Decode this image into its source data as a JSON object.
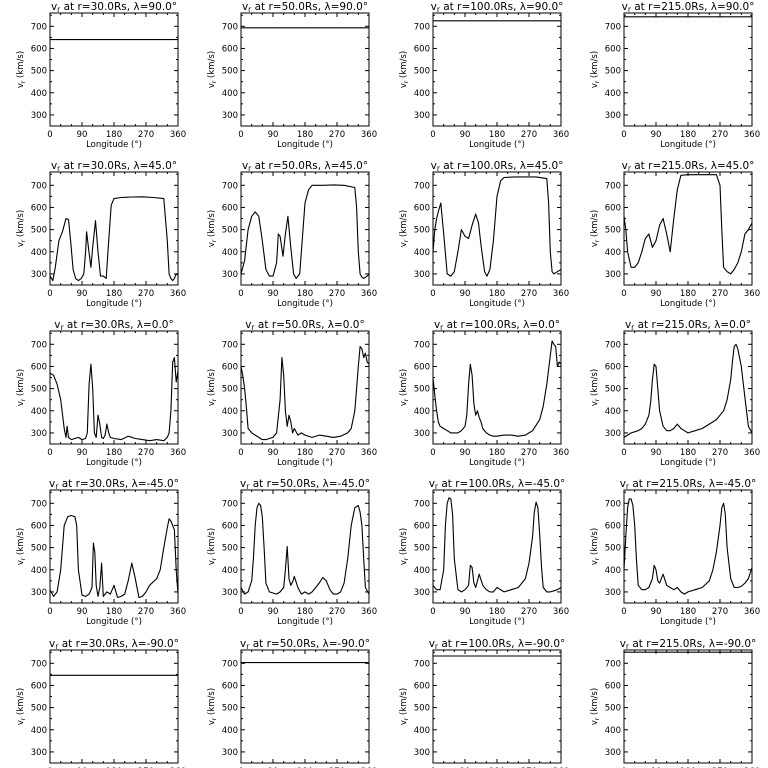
{
  "shared": {
    "xlabel": "Longitude (°)",
    "ylabel": "vr (km/s)",
    "ylabel_main": "v",
    "ylabel_sub": "r",
    "ylabel_unit": " (km/s)",
    "xticks": [
      "0",
      "90",
      "180",
      "270",
      "360"
    ],
    "yticks": [
      "300",
      "400",
      "500",
      "600",
      "700"
    ],
    "xlim": [
      0,
      360
    ],
    "ylim": [
      250,
      760
    ],
    "line_color": "#000000"
  },
  "chart_data": [
    {
      "type": "line",
      "title": "vr at r=30.0Rs, λ=90.0°",
      "title_main": "v",
      "title_sub": "r",
      "title_rest": " at r=30.0Rs, λ=90.0°",
      "x": [
        0,
        360
      ],
      "y": [
        640,
        640
      ]
    },
    {
      "type": "line",
      "title": "vr at r=50.0Rs, λ=90.0°",
      "title_main": "v",
      "title_sub": "r",
      "title_rest": " at r=50.0Rs, λ=90.0°",
      "x": [
        0,
        360
      ],
      "y": [
        693,
        693
      ]
    },
    {
      "type": "line",
      "title": "vr at r=100.0Rs, λ=90.0°",
      "title_main": "v",
      "title_sub": "r",
      "title_rest": " at r=100.0Rs, λ=90.0°",
      "x": [
        0,
        360
      ],
      "y": [
        725,
        725
      ]
    },
    {
      "type": "line",
      "title": "vr at r=215.0Rs, λ=90.0°",
      "title_main": "v",
      "title_sub": "r",
      "title_rest": " at r=215.0Rs, λ=90.0°",
      "x": [
        0,
        360
      ],
      "y": [
        743,
        743
      ]
    },
    {
      "type": "line",
      "title": "vr at r=30.0Rs, λ=45.0°",
      "title_main": "v",
      "title_sub": "r",
      "title_rest": " at r=30.0Rs, λ=45.0°",
      "x": [
        0,
        8,
        15,
        25,
        35,
        45,
        52,
        58,
        65,
        72,
        80,
        88,
        95,
        100,
        103,
        108,
        115,
        120,
        128,
        135,
        142,
        150,
        158,
        165,
        172,
        180,
        200,
        230,
        260,
        290,
        320,
        330,
        335,
        340,
        345,
        350,
        355,
        360
      ],
      "y": [
        290,
        270,
        330,
        450,
        490,
        550,
        545,
        450,
        320,
        280,
        270,
        280,
        300,
        400,
        490,
        420,
        330,
        420,
        540,
        400,
        290,
        290,
        280,
        450,
        610,
        640,
        645,
        647,
        648,
        645,
        640,
        450,
        300,
        280,
        270,
        280,
        300,
        295
      ]
    },
    {
      "type": "line",
      "title": "vr at r=50.0Rs, λ=45.0°",
      "title_main": "v",
      "title_sub": "r",
      "title_rest": " at r=50.0Rs, λ=45.0°",
      "x": [
        0,
        10,
        20,
        30,
        40,
        50,
        60,
        70,
        80,
        90,
        100,
        105,
        110,
        118,
        125,
        132,
        140,
        148,
        155,
        165,
        172,
        180,
        190,
        200,
        230,
        260,
        290,
        320,
        325,
        330,
        335,
        340,
        345,
        350,
        355,
        360
      ],
      "y": [
        300,
        360,
        500,
        560,
        580,
        560,
        450,
        320,
        290,
        290,
        350,
        480,
        470,
        380,
        480,
        560,
        420,
        300,
        280,
        300,
        450,
        620,
        680,
        700,
        700,
        702,
        700,
        690,
        600,
        400,
        300,
        285,
        280,
        285,
        290,
        300
      ]
    },
    {
      "type": "line",
      "title": "vr at r=100.0Rs, λ=45.0°",
      "title_main": "v",
      "title_sub": "r",
      "title_rest": " at r=100.0Rs, λ=45.0°",
      "x": [
        0,
        5,
        10,
        15,
        22,
        30,
        40,
        50,
        60,
        70,
        80,
        90,
        100,
        110,
        120,
        128,
        135,
        145,
        152,
        160,
        170,
        180,
        190,
        200,
        230,
        260,
        290,
        320,
        325,
        330,
        335,
        340,
        350,
        360
      ],
      "y": [
        400,
        500,
        550,
        580,
        620,
        480,
        300,
        290,
        310,
        400,
        500,
        470,
        460,
        520,
        570,
        530,
        430,
        310,
        290,
        320,
        450,
        650,
        720,
        735,
        738,
        738,
        738,
        730,
        620,
        400,
        310,
        300,
        310,
        320
      ]
    },
    {
      "type": "line",
      "title": "vr at r=215.0Rs, λ=45.0°",
      "title_main": "v",
      "title_sub": "r",
      "title_rest": " at r=215.0Rs, λ=45.0°",
      "x": [
        0,
        5,
        10,
        20,
        30,
        40,
        50,
        60,
        70,
        80,
        90,
        100,
        110,
        120,
        130,
        140,
        150,
        160,
        180,
        200,
        230,
        260,
        270,
        275,
        280,
        290,
        300,
        310,
        320,
        330,
        340,
        350,
        360
      ],
      "y": [
        560,
        500,
        400,
        330,
        330,
        350,
        400,
        460,
        480,
        420,
        450,
        520,
        550,
        480,
        400,
        550,
        680,
        745,
        748,
        748,
        748,
        748,
        700,
        500,
        330,
        310,
        300,
        320,
        350,
        400,
        480,
        500,
        530
      ]
    },
    {
      "type": "line",
      "title": "vr at r=30.0Rs, λ=0.0°",
      "title_main": "v",
      "title_sub": "r",
      "title_rest": " at r=30.0Rs, λ=0.0°",
      "x": [
        0,
        10,
        20,
        30,
        40,
        45,
        48,
        52,
        60,
        70,
        80,
        90,
        100,
        105,
        110,
        115,
        120,
        125,
        130,
        135,
        140,
        145,
        150,
        155,
        160,
        165,
        170,
        180,
        200,
        220,
        240,
        260,
        280,
        300,
        320,
        330,
        335,
        340,
        345,
        350,
        355,
        360
      ],
      "y": [
        570,
        560,
        520,
        450,
        320,
        280,
        330,
        280,
        270,
        275,
        280,
        270,
        275,
        300,
        520,
        610,
        500,
        300,
        280,
        380,
        340,
        280,
        275,
        290,
        340,
        300,
        280,
        275,
        270,
        285,
        275,
        270,
        265,
        270,
        265,
        280,
        300,
        400,
        620,
        640,
        530,
        580
      ]
    },
    {
      "type": "line",
      "title": "vr at r=50.0Rs, λ=0.0°",
      "title_main": "v",
      "title_sub": "r",
      "title_rest": " at r=50.0Rs, λ=0.0°",
      "x": [
        0,
        5,
        10,
        15,
        20,
        30,
        40,
        50,
        60,
        70,
        80,
        90,
        100,
        110,
        115,
        120,
        125,
        130,
        135,
        140,
        145,
        150,
        160,
        170,
        180,
        200,
        220,
        240,
        260,
        280,
        300,
        310,
        320,
        325,
        330,
        335,
        340,
        345,
        350,
        355,
        360
      ],
      "y": [
        600,
        560,
        500,
        420,
        320,
        300,
        290,
        280,
        270,
        270,
        275,
        280,
        300,
        450,
        640,
        560,
        400,
        330,
        380,
        350,
        300,
        320,
        290,
        300,
        290,
        280,
        290,
        285,
        280,
        285,
        300,
        320,
        400,
        500,
        600,
        690,
        680,
        640,
        660,
        620,
        610
      ]
    },
    {
      "type": "line",
      "title": "vr at r=100.0Rs, λ=0.0°",
      "title_main": "v",
      "title_sub": "r",
      "title_rest": " at r=100.0Rs, λ=0.0°",
      "x": [
        0,
        5,
        10,
        15,
        20,
        30,
        40,
        50,
        60,
        70,
        80,
        90,
        95,
        100,
        105,
        110,
        115,
        120,
        125,
        130,
        135,
        140,
        150,
        160,
        170,
        180,
        200,
        220,
        240,
        260,
        280,
        300,
        310,
        320,
        330,
        335,
        340,
        345,
        350,
        355,
        360
      ],
      "y": [
        550,
        470,
        400,
        350,
        330,
        320,
        310,
        300,
        300,
        300,
        310,
        330,
        380,
        520,
        610,
        560,
        430,
        380,
        400,
        370,
        350,
        320,
        300,
        290,
        285,
        285,
        290,
        290,
        285,
        290,
        310,
        360,
        420,
        520,
        650,
        715,
        700,
        690,
        600,
        620,
        610
      ]
    },
    {
      "type": "line",
      "title": "vr at r=215.0Rs, λ=0.0°",
      "title_main": "v",
      "title_sub": "r",
      "title_rest": " at r=215.0Rs, λ=0.0°",
      "x": [
        0,
        10,
        20,
        30,
        40,
        50,
        60,
        70,
        75,
        80,
        85,
        90,
        95,
        100,
        110,
        120,
        130,
        140,
        150,
        160,
        170,
        180,
        200,
        220,
        240,
        260,
        280,
        290,
        300,
        305,
        310,
        315,
        320,
        330,
        340,
        350,
        360
      ],
      "y": [
        280,
        290,
        300,
        305,
        310,
        320,
        340,
        380,
        440,
        540,
        610,
        600,
        500,
        400,
        330,
        310,
        310,
        320,
        340,
        320,
        310,
        300,
        310,
        320,
        340,
        360,
        400,
        450,
        540,
        620,
        690,
        700,
        680,
        600,
        460,
        330,
        300
      ]
    },
    {
      "type": "line",
      "title": "vr at r=30.0Rs, λ=-45.0°",
      "title_main": "v",
      "title_sub": "r",
      "title_rest": " at r=30.0Rs, λ=-45.0°",
      "x": [
        0,
        10,
        20,
        30,
        40,
        50,
        60,
        70,
        75,
        80,
        90,
        100,
        110,
        118,
        122,
        126,
        130,
        135,
        140,
        145,
        150,
        160,
        170,
        180,
        190,
        200,
        210,
        220,
        230,
        240,
        250,
        260,
        270,
        280,
        300,
        310,
        320,
        330,
        335,
        340,
        345,
        350,
        355,
        360
      ],
      "y": [
        310,
        280,
        300,
        400,
        600,
        640,
        645,
        640,
        600,
        400,
        285,
        280,
        290,
        320,
        520,
        480,
        330,
        280,
        320,
        430,
        280,
        300,
        290,
        330,
        275,
        280,
        290,
        350,
        430,
        360,
        275,
        280,
        300,
        330,
        360,
        400,
        500,
        590,
        630,
        620,
        600,
        580,
        400,
        290
      ]
    },
    {
      "type": "line",
      "title": "vr at r=50.0Rs, λ=-45.0°",
      "title_main": "v",
      "title_sub": "r",
      "title_rest": " at r=50.0Rs, λ=-45.0°",
      "x": [
        0,
        10,
        20,
        30,
        35,
        40,
        45,
        50,
        55,
        60,
        65,
        70,
        80,
        90,
        100,
        110,
        120,
        125,
        130,
        135,
        140,
        145,
        150,
        160,
        170,
        180,
        190,
        200,
        210,
        220,
        230,
        240,
        250,
        260,
        270,
        280,
        290,
        300,
        310,
        320,
        330,
        335,
        340,
        345,
        350,
        360
      ],
      "y": [
        320,
        290,
        300,
        350,
        450,
        600,
        680,
        700,
        690,
        640,
        500,
        340,
        300,
        295,
        290,
        300,
        320,
        400,
        505,
        360,
        330,
        345,
        370,
        320,
        290,
        300,
        290,
        300,
        320,
        340,
        365,
        350,
        310,
        290,
        290,
        300,
        340,
        450,
        600,
        680,
        690,
        660,
        600,
        450,
        320,
        290
      ]
    },
    {
      "type": "line",
      "title": "vr at r=100.0Rs, λ=-45.0°",
      "title_main": "v",
      "title_sub": "r",
      "title_rest": " at r=100.0Rs, λ=-45.0°",
      "x": [
        0,
        10,
        20,
        30,
        35,
        40,
        45,
        50,
        55,
        60,
        70,
        80,
        90,
        100,
        105,
        110,
        115,
        120,
        130,
        140,
        150,
        160,
        170,
        180,
        200,
        220,
        240,
        260,
        270,
        280,
        285,
        290,
        295,
        300,
        305,
        310,
        320,
        330,
        340,
        350,
        360
      ],
      "y": [
        330,
        310,
        310,
        400,
        600,
        700,
        725,
        720,
        650,
        450,
        310,
        300,
        310,
        330,
        420,
        410,
        340,
        320,
        380,
        330,
        310,
        300,
        300,
        320,
        300,
        310,
        320,
        360,
        430,
        550,
        660,
        705,
        680,
        560,
        420,
        320,
        300,
        300,
        305,
        310,
        320
      ]
    },
    {
      "type": "line",
      "title": "vr at r=215.0Rs, λ=-45.0°",
      "title_main": "v",
      "title_sub": "r",
      "title_rest": " at r=215.0Rs, λ=-45.0°",
      "x": [
        0,
        5,
        10,
        15,
        20,
        25,
        30,
        35,
        40,
        50,
        60,
        70,
        80,
        85,
        90,
        95,
        100,
        110,
        120,
        130,
        140,
        150,
        160,
        170,
        180,
        200,
        220,
        240,
        250,
        260,
        270,
        275,
        280,
        285,
        290,
        300,
        310,
        320,
        330,
        340,
        350,
        360
      ],
      "y": [
        400,
        550,
        680,
        720,
        720,
        690,
        600,
        450,
        330,
        310,
        310,
        320,
        360,
        420,
        400,
        350,
        340,
        380,
        330,
        320,
        310,
        320,
        300,
        290,
        300,
        310,
        320,
        350,
        400,
        480,
        600,
        680,
        700,
        650,
        500,
        360,
        320,
        320,
        325,
        340,
        360,
        410
      ]
    },
    {
      "type": "line",
      "title": "vr at r=30.0Rs, λ=-90.0°",
      "title_main": "v",
      "title_sub": "r",
      "title_rest": " at r=30.0Rs, λ=-90.0°",
      "x": [
        0,
        360
      ],
      "y": [
        646,
        646
      ]
    },
    {
      "type": "line",
      "title": "vr at r=50.0Rs, λ=-90.0°",
      "title_main": "v",
      "title_sub": "r",
      "title_rest": " at r=50.0Rs, λ=-90.0°",
      "x": [
        0,
        360
      ],
      "y": [
        703,
        703
      ]
    },
    {
      "type": "line",
      "title": "vr at r=100.0Rs, λ=-90.0°",
      "title_main": "v",
      "title_sub": "r",
      "title_rest": " at r=100.0Rs, λ=-90.0°",
      "x": [
        0,
        360
      ],
      "y": [
        733,
        733
      ]
    },
    {
      "type": "line",
      "title": "vr at r=215.0Rs, λ=-90.0°",
      "title_main": "v",
      "title_sub": "r",
      "title_rest": " at r=215.0Rs, λ=-90.0°",
      "x": [
        0,
        360
      ],
      "y": [
        750,
        750
      ]
    }
  ]
}
